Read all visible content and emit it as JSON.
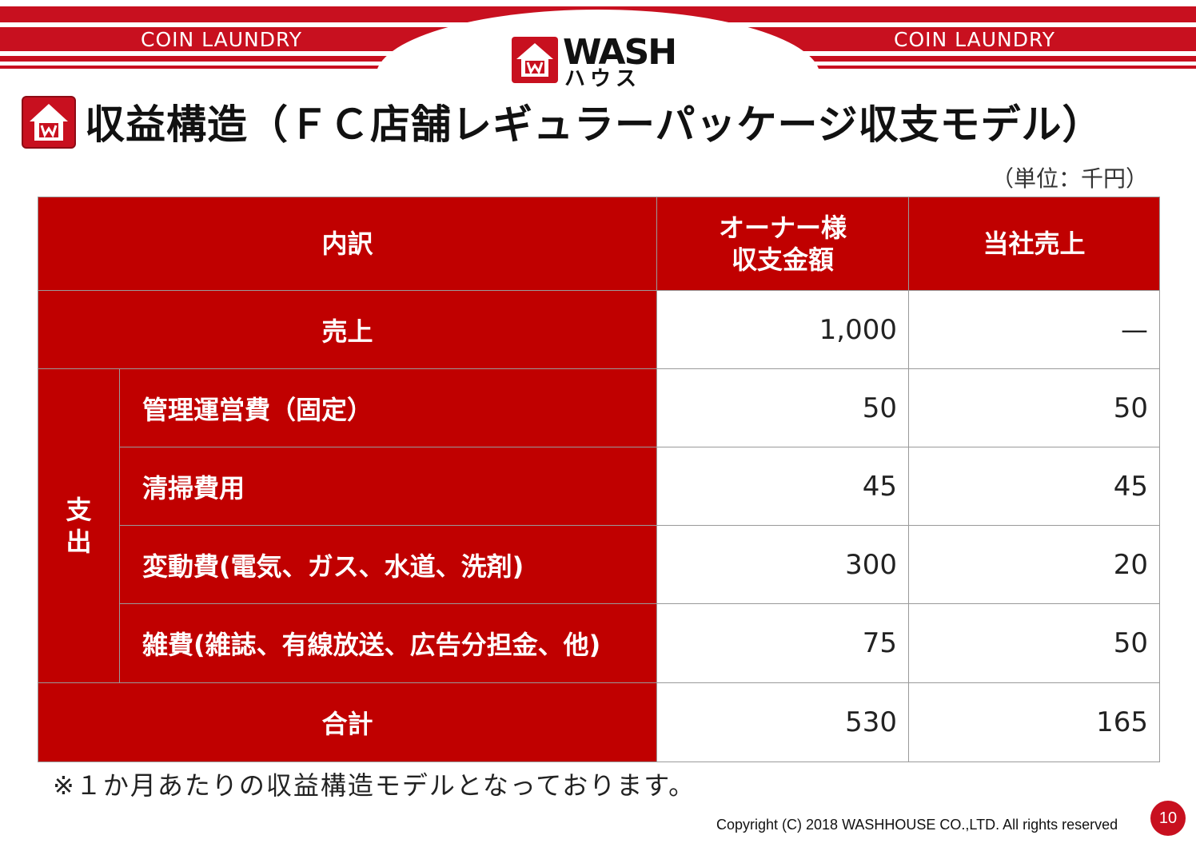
{
  "header": {
    "left_label": "COIN LAUNDRY",
    "right_label": "COIN LAUNDRY",
    "logo_word": "WASH",
    "logo_kana": "ハウス"
  },
  "title": "収益構造（ＦＣ店舗レギュラーパッケージ収支モデル）",
  "unit": "（単位：千円）",
  "table": {
    "headers": {
      "breakdown": "内訳",
      "owner": "オーナー様\n収支金額",
      "company": "当社売上"
    },
    "sales": {
      "label": "売上",
      "owner": "1,000",
      "company": "—"
    },
    "expense_group_label": "支出",
    "expenses": [
      {
        "label": "管理運営費（固定）",
        "owner": "50",
        "company": "50"
      },
      {
        "label": "清掃費用",
        "owner": "45",
        "company": "45"
      },
      {
        "label": "変動費(電気、ガス、水道、洗剤)",
        "owner": "300",
        "company": "20"
      },
      {
        "label": "雑費(雑誌、有線放送、広告分担金、他)",
        "owner": "75",
        "company": "50"
      }
    ],
    "total": {
      "label": "合計",
      "owner": "530",
      "company": "165"
    }
  },
  "note": "※１か月あたりの収益構造モデルとなっております。",
  "footer": {
    "copyright": "Copyright (C) 2018 WASHHOUSE CO.,LTD. All rights reserved",
    "page_number": "10"
  },
  "colors": {
    "brand_red": "#c8101f",
    "table_red": "#c00000"
  },
  "icons": [
    "house-icon"
  ]
}
